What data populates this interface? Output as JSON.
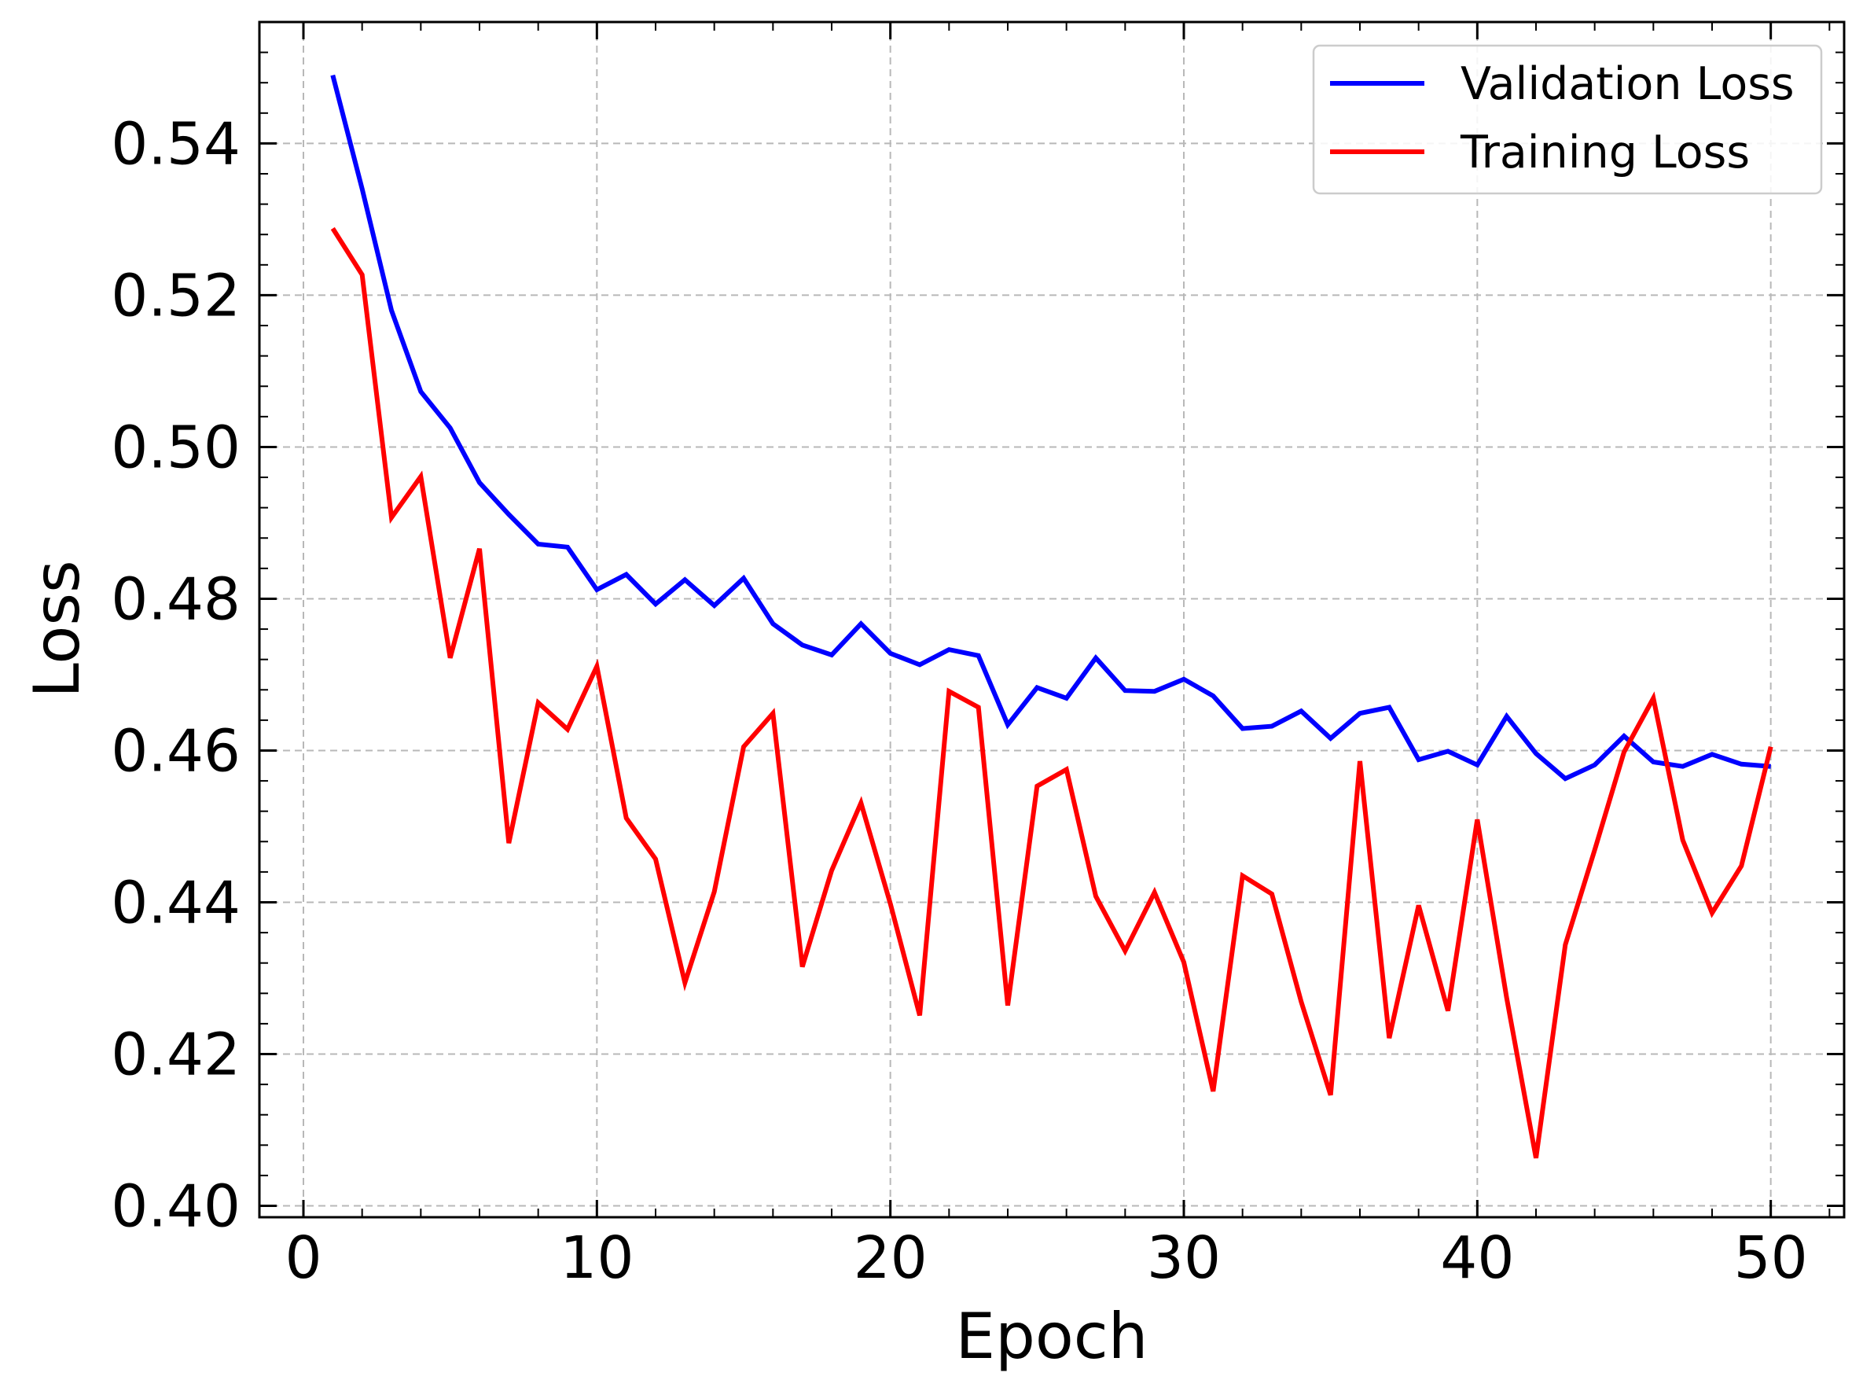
{
  "chart_data": {
    "type": "line",
    "xlabel": "Epoch",
    "ylabel": "Loss",
    "xlim": [
      -1.5,
      52.5
    ],
    "ylim": [
      0.3985,
      0.556
    ],
    "xticks": [
      0,
      10,
      20,
      30,
      40,
      50
    ],
    "xtick_labels": [
      "0",
      "10",
      "20",
      "30",
      "40",
      "50"
    ],
    "yticks": [
      0.4,
      0.42,
      0.44,
      0.46,
      0.48,
      0.5,
      0.52,
      0.54
    ],
    "ytick_labels": [
      "0.40",
      "0.42",
      "0.44",
      "0.46",
      "0.48",
      "0.50",
      "0.52",
      "0.54"
    ],
    "grid": true,
    "legend_position": "top-right",
    "x": [
      1,
      2,
      3,
      4,
      5,
      6,
      7,
      8,
      9,
      10,
      11,
      12,
      13,
      14,
      15,
      16,
      17,
      18,
      19,
      20,
      21,
      22,
      23,
      24,
      25,
      26,
      27,
      28,
      29,
      30,
      31,
      32,
      33,
      34,
      35,
      36,
      37,
      38,
      39,
      40,
      41,
      42,
      43,
      44,
      45,
      46,
      47,
      48,
      49,
      50
    ],
    "series": [
      {
        "name": "Validation Loss",
        "color": "#0000ff",
        "values": [
          0.549,
          0.534,
          0.518,
          0.5073,
          0.5025,
          0.4953,
          0.4911,
          0.4872,
          0.4868,
          0.4812,
          0.4832,
          0.4793,
          0.4825,
          0.4791,
          0.4827,
          0.4767,
          0.4739,
          0.4726,
          0.4767,
          0.4728,
          0.4713,
          0.4733,
          0.4725,
          0.4634,
          0.4683,
          0.4669,
          0.4722,
          0.4679,
          0.4678,
          0.4694,
          0.4672,
          0.4629,
          0.4632,
          0.4652,
          0.4616,
          0.4649,
          0.4657,
          0.4588,
          0.4599,
          0.4581,
          0.4645,
          0.4596,
          0.4563,
          0.4581,
          0.4619,
          0.4585,
          0.4579,
          0.4595,
          0.4582,
          0.4579
        ]
      },
      {
        "name": "Training Loss",
        "color": "#ff0000",
        "values": [
          0.5288,
          0.5227,
          0.4907,
          0.4961,
          0.4722,
          0.4866,
          0.4478,
          0.4663,
          0.4628,
          0.4711,
          0.4511,
          0.4457,
          0.4294,
          0.4414,
          0.4605,
          0.4649,
          0.4315,
          0.4442,
          0.4531,
          0.4398,
          0.4251,
          0.4678,
          0.4657,
          0.4264,
          0.4553,
          0.4575,
          0.4408,
          0.4336,
          0.4413,
          0.4321,
          0.4151,
          0.4435,
          0.4411,
          0.4269,
          0.4146,
          0.4586,
          0.4221,
          0.4396,
          0.4257,
          0.4509,
          0.4274,
          0.4063,
          0.4344,
          0.4469,
          0.4598,
          0.4669,
          0.4482,
          0.4386,
          0.4448,
          0.4605
        ]
      }
    ]
  }
}
